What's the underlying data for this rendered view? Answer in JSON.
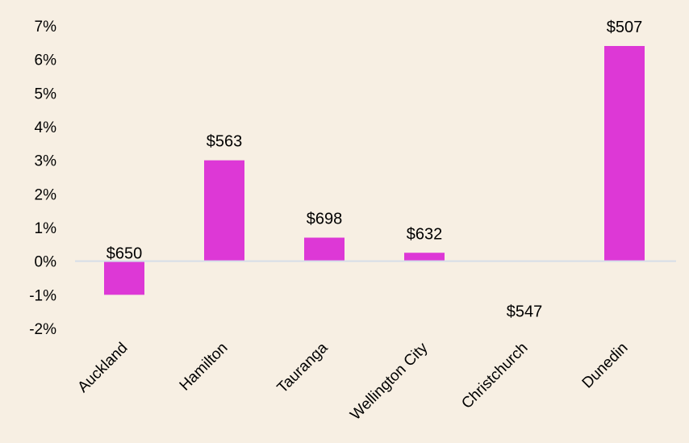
{
  "chart_data": {
    "type": "bar",
    "title": "",
    "xlabel": "",
    "ylabel": "",
    "categories": [
      "Auckland",
      "Hamilton",
      "Tauranga",
      "Wellington City",
      "Christchurch",
      "Dunedin"
    ],
    "values": [
      -1.0,
      3.0,
      0.7,
      0.25,
      0.0,
      6.4
    ],
    "value_unit": "%",
    "data_labels": [
      "$650",
      "$563",
      "$698",
      "$632",
      "$547",
      "$507"
    ],
    "ylim": [
      -2,
      7
    ],
    "yticks": [
      7,
      6,
      5,
      4,
      3,
      2,
      1,
      0,
      -1,
      -2
    ],
    "ytick_labels": [
      "7%",
      "6%",
      "5%",
      "4%",
      "3%",
      "2%",
      "1%",
      "0%",
      "-1%",
      "-2%"
    ],
    "grid": false,
    "legend": "none",
    "bar_color": "#DD38D6",
    "axis_color": "#D6DEE8",
    "background_color": "#F7EFE3"
  }
}
